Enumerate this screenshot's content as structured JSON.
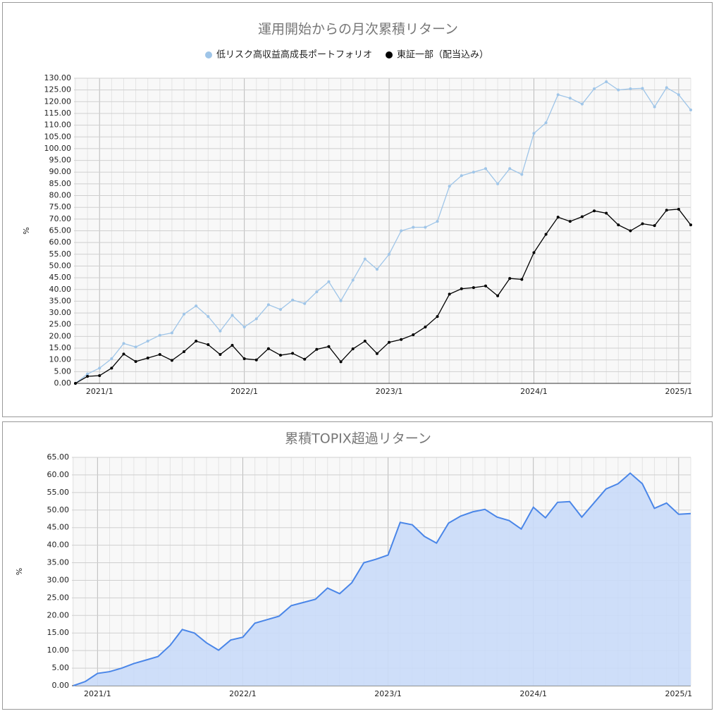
{
  "chart_data": [
    {
      "type": "line",
      "title": "運用開始からの月次累積リターン",
      "y_label": "%",
      "categories": [
        null,
        null,
        "2021/1",
        null,
        null,
        null,
        null,
        null,
        null,
        null,
        null,
        null,
        null,
        null,
        "2022/1",
        null,
        null,
        null,
        null,
        null,
        null,
        null,
        null,
        null,
        null,
        null,
        "2023/1",
        null,
        null,
        null,
        null,
        null,
        null,
        null,
        null,
        null,
        null,
        null,
        "2024/1",
        null,
        null,
        null,
        null,
        null,
        null,
        null,
        null,
        null,
        null,
        null,
        "2025/1",
        null
      ],
      "series": [
        {
          "name": "低リスク高収益高成長ポートフォリオ",
          "color": "#9fc5e8",
          "values": [
            0,
            4,
            6.5,
            10.5,
            17,
            15.5,
            18,
            20.5,
            21.5,
            29.5,
            33,
            28.5,
            22.3,
            29,
            24,
            27.5,
            33.5,
            31.5,
            35.5,
            34,
            39,
            43.3,
            35.2,
            44,
            53,
            48.6,
            55,
            65,
            66.5,
            66.5,
            69,
            84,
            88.5,
            90,
            91.5,
            85,
            91.5,
            89,
            106.5,
            111,
            123,
            121.5,
            119,
            125.5,
            128.5,
            125,
            125.5,
            125.7,
            117.8,
            126,
            123,
            116.5
          ]
        },
        {
          "name": "東証一部（配当込み）",
          "color": "#000000",
          "values": [
            0,
            3,
            3.3,
            6.5,
            12.5,
            9.3,
            10.8,
            12.3,
            9.8,
            13.5,
            18,
            16.5,
            12.3,
            16.2,
            10.5,
            10,
            14.8,
            12,
            12.8,
            10.3,
            14.5,
            15.7,
            9.2,
            14.7,
            18,
            12.7,
            17.5,
            18.7,
            20.7,
            24,
            28.5,
            38,
            40.3,
            40.8,
            41.5,
            37.3,
            44.7,
            44.3,
            55.7,
            63.5,
            70.8,
            69,
            71,
            73.5,
            72.5,
            67.5,
            65,
            68,
            67.2,
            73.8,
            74.2,
            67.5
          ]
        }
      ],
      "ylim": [
        0,
        130
      ],
      "yticks": [
        {
          "value": 0,
          "label": "0.00"
        },
        {
          "value": 5,
          "label": "5.00"
        },
        {
          "value": 10,
          "label": "10.00"
        },
        {
          "value": 15,
          "label": "15.00"
        },
        {
          "value": 20,
          "label": "20.00"
        },
        {
          "value": 25,
          "label": "25.00"
        },
        {
          "value": 30,
          "label": "30.00"
        },
        {
          "value": 35,
          "label": "35.00"
        },
        {
          "value": 40,
          "label": "40.00"
        },
        {
          "value": 45,
          "label": "45.00"
        },
        {
          "value": 50,
          "label": "50.00"
        },
        {
          "value": 55,
          "label": "55.00"
        },
        {
          "value": 60,
          "label": "60.00"
        },
        {
          "value": 65,
          "label": "65.00"
        },
        {
          "value": 70,
          "label": "70.00"
        },
        {
          "value": 75,
          "label": "75.00"
        },
        {
          "value": 80,
          "label": "80.00"
        },
        {
          "value": 85,
          "label": "85.00"
        },
        {
          "value": 90,
          "label": "90.00"
        },
        {
          "value": 95,
          "label": "95.00"
        },
        {
          "value": 100,
          "label": "100.00"
        },
        {
          "value": 105,
          "label": "105.00"
        },
        {
          "value": 110,
          "label": "110.00"
        },
        {
          "value": 115,
          "label": "115.00"
        },
        {
          "value": 120,
          "label": "120.00"
        },
        {
          "value": 125,
          "label": "125.00"
        },
        {
          "value": 130,
          "label": "130.00"
        }
      ],
      "grid": true,
      "legend": "top"
    },
    {
      "type": "area",
      "title": "累積TOPIX超過リターン",
      "y_label": "%",
      "categories": [
        null,
        null,
        "2021/1",
        null,
        null,
        null,
        null,
        null,
        null,
        null,
        null,
        null,
        null,
        null,
        "2022/1",
        null,
        null,
        null,
        null,
        null,
        null,
        null,
        null,
        null,
        null,
        null,
        "2023/1",
        null,
        null,
        null,
        null,
        null,
        null,
        null,
        null,
        null,
        null,
        null,
        "2024/1",
        null,
        null,
        null,
        null,
        null,
        null,
        null,
        null,
        null,
        null,
        null,
        "2025/1",
        null
      ],
      "color": "#4a86e8",
      "fill": "#c9daf8",
      "values": [
        0,
        1.2,
        3.5,
        4,
        5,
        6.3,
        7.3,
        8.3,
        11.5,
        16,
        15,
        12.2,
        10.1,
        13,
        13.8,
        17.8,
        18.8,
        19.8,
        22.8,
        23.7,
        24.6,
        27.8,
        26.2,
        29.3,
        35,
        36,
        37.2,
        46.5,
        45.8,
        42.5,
        40.6,
        46.3,
        48.3,
        49.5,
        50.2,
        48,
        47,
        44.6,
        50.8,
        47.8,
        52.2,
        52.4,
        48,
        52,
        56,
        57.5,
        60.5,
        57.5,
        50.5,
        52,
        48.8,
        49
      ],
      "ylim": [
        0,
        65
      ],
      "yticks": [
        {
          "value": 0,
          "label": "0.00"
        },
        {
          "value": 5,
          "label": "5.00"
        },
        {
          "value": 10,
          "label": "10.00"
        },
        {
          "value": 15,
          "label": "15.00"
        },
        {
          "value": 20,
          "label": "20.00"
        },
        {
          "value": 25,
          "label": "25.00"
        },
        {
          "value": 30,
          "label": "30.00"
        },
        {
          "value": 35,
          "label": "35.00"
        },
        {
          "value": 40,
          "label": "40.00"
        },
        {
          "value": 45,
          "label": "45.00"
        },
        {
          "value": 50,
          "label": "50.00"
        },
        {
          "value": 55,
          "label": "55.00"
        },
        {
          "value": 60,
          "label": "60.00"
        },
        {
          "value": 65,
          "label": "65.00"
        }
      ],
      "grid": true
    }
  ]
}
